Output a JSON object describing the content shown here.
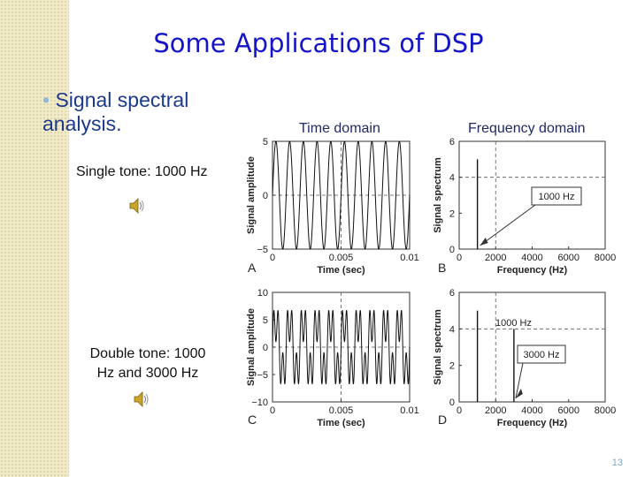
{
  "slide": {
    "title": "Some Applications of DSP",
    "bullet_marker": "•",
    "bullet": "Signal spectral analysis.",
    "time_domain_label": "Time domain",
    "frequency_domain_label": "Frequency domain",
    "single_tone_label": "Single tone: 1000 Hz",
    "double_tone_label": "Double tone: 1000 Hz and 3000 Hz",
    "page_number": "13",
    "speaker_icon": "speaker-icon"
  },
  "colors": {
    "title": "#1515c8",
    "bullet": "#1b3a8c",
    "strip": "#f1ebc9",
    "page_number": "#7aa7c7"
  },
  "chart_data": [
    {
      "type": "line",
      "panel": "A",
      "title": "",
      "xlabel": "Time (sec)",
      "ylabel": "Signal amplitude",
      "xlim": [
        0,
        0.01
      ],
      "ylim": [
        -5,
        5
      ],
      "xticks": [
        "0",
        "0.005",
        "0.01"
      ],
      "yticks": [
        "5",
        "0",
        "−5"
      ],
      "signal": {
        "components": [
          {
            "freq_hz": 1000,
            "amplitude": 5
          }
        ],
        "dashed_lines": [
          0.005,
          0
        ]
      }
    },
    {
      "type": "line",
      "panel": "B",
      "title": "",
      "xlabel": "Frequency (Hz)",
      "ylabel": "Signal spectrum",
      "xlim": [
        0,
        8000
      ],
      "ylim": [
        0,
        6
      ],
      "xticks": [
        "0",
        "2000",
        "4000",
        "6000",
        "8000"
      ],
      "yticks": [
        "6",
        "4",
        "2",
        "0"
      ],
      "peaks": [
        {
          "x": 1000,
          "y": 5
        }
      ],
      "annotations": [
        "1000 Hz"
      ],
      "dashed_lines": [
        2000,
        4
      ]
    },
    {
      "type": "line",
      "panel": "C",
      "title": "",
      "xlabel": "Time (sec)",
      "ylabel": "Signal amplitude",
      "xlim": [
        0,
        0.01
      ],
      "ylim": [
        -10,
        10
      ],
      "xticks": [
        "0",
        "0.005",
        "0.01"
      ],
      "yticks": [
        "10",
        "5",
        "0",
        "−5",
        "−10"
      ],
      "signal": {
        "components": [
          {
            "freq_hz": 1000,
            "amplitude": 5
          },
          {
            "freq_hz": 3000,
            "amplitude": 4
          }
        ],
        "dashed_lines": [
          0.005,
          0
        ]
      }
    },
    {
      "type": "line",
      "panel": "D",
      "title": "",
      "xlabel": "Frequency (Hz)",
      "ylabel": "Signal spectrum",
      "xlim": [
        0,
        8000
      ],
      "ylim": [
        0,
        6
      ],
      "xticks": [
        "0",
        "2000",
        "4000",
        "6000",
        "8000"
      ],
      "yticks": [
        "6",
        "4",
        "2",
        "0"
      ],
      "peaks": [
        {
          "x": 1000,
          "y": 5
        },
        {
          "x": 3000,
          "y": 4
        }
      ],
      "annotations": [
        "1000 Hz",
        "3000 Hz"
      ],
      "dashed_lines": [
        2000,
        4
      ]
    }
  ]
}
